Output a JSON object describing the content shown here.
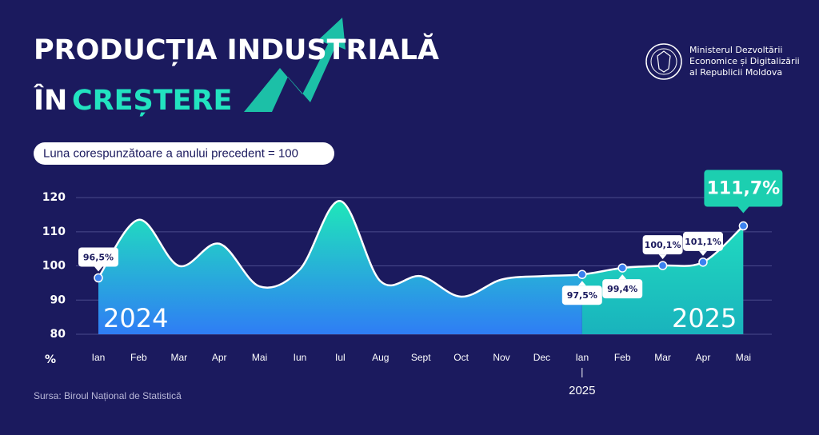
{
  "header": {
    "title_line1": "PRODUCȚIA INDUSTRIALĂ",
    "title_line2_prefix": "ÎN",
    "title_line2_highlight": "CREȘTERE"
  },
  "ministry": [
    "Ministerul Dezvoltării",
    "Economice și Digitalizării",
    "al Republicii Moldova"
  ],
  "chart_data": {
    "type": "area",
    "subtitle": "Luna corespunzătoare a anului precedent = 100",
    "y_unit": "%",
    "categories": [
      "Ian",
      "Feb",
      "Mar",
      "Apr",
      "Mai",
      "Iun",
      "Iul",
      "Aug",
      "Sept",
      "Oct",
      "Nov",
      "Dec",
      "Ian",
      "Feb",
      "Mar",
      "Apr",
      "Mai"
    ],
    "x_sublabels": [
      null,
      null,
      null,
      null,
      null,
      null,
      null,
      null,
      null,
      null,
      null,
      null,
      "2025",
      null,
      null,
      null,
      null
    ],
    "values": [
      96.5,
      113.5,
      100,
      106.5,
      94,
      99,
      119,
      95.5,
      97,
      91,
      96,
      97,
      97.5,
      99.4,
      100.1,
      101.1,
      111.7
    ],
    "value_labels": [
      "96,5%",
      null,
      null,
      null,
      null,
      null,
      null,
      null,
      null,
      null,
      null,
      null,
      "97,5%",
      "99,4%",
      "100,1%",
      "101,1%",
      "111,7%"
    ],
    "year_labels": [
      "2024",
      "2025"
    ],
    "line_color": "#ffffff",
    "area_colors": {
      "2024": [
        "#1fe7b9",
        "#2f7df5"
      ],
      "2025": [
        "#22e3c0",
        "#19b3bd"
      ]
    },
    "highlight_color": "#1ccfb0",
    "ylim": [
      80,
      124
    ],
    "yticks": [
      80,
      90,
      100,
      110,
      120
    ],
    "grid": true
  },
  "source": "Sursa: Biroul Național de Statistică"
}
